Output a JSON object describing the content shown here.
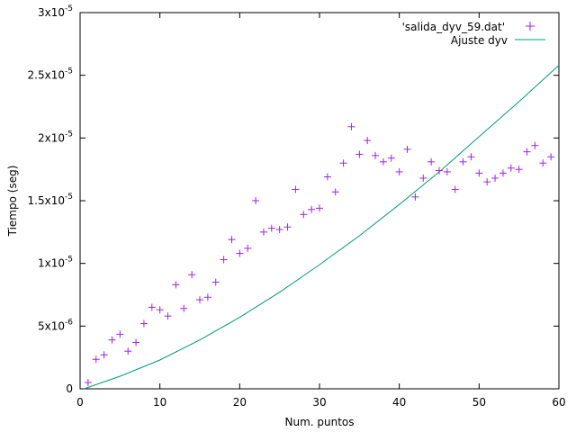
{
  "chart_data": {
    "type": "scatter",
    "xlabel": "Num. puntos",
    "ylabel": "Tiempo (seg)",
    "xlim": [
      0,
      60
    ],
    "ylim": [
      0,
      3e-05
    ],
    "grid": false,
    "legend_position": "top-right",
    "x_ticks": [
      {
        "value": 0,
        "label": "0"
      },
      {
        "value": 10,
        "label": "10"
      },
      {
        "value": 20,
        "label": "20"
      },
      {
        "value": 30,
        "label": "30"
      },
      {
        "value": 40,
        "label": "40"
      },
      {
        "value": 50,
        "label": "50"
      },
      {
        "value": 60,
        "label": "60"
      }
    ],
    "y_ticks": [
      {
        "value": 0,
        "mantissa": "0",
        "exponent": ""
      },
      {
        "value": 5e-06,
        "mantissa": "5x10",
        "exponent": "-6"
      },
      {
        "value": 1e-05,
        "mantissa": "1x10",
        "exponent": "-5"
      },
      {
        "value": 1.5e-05,
        "mantissa": "1.5x10",
        "exponent": "-5"
      },
      {
        "value": 2e-05,
        "mantissa": "2x10",
        "exponent": "-5"
      },
      {
        "value": 2.5e-05,
        "mantissa": "2.5x10",
        "exponent": "-5"
      },
      {
        "value": 3e-05,
        "mantissa": "3x10",
        "exponent": "-5"
      }
    ],
    "series": [
      {
        "name": "'salida_dyv_59.dat'",
        "style": "points",
        "color": "#a020f0",
        "x": [
          1,
          2,
          3,
          4,
          5,
          6,
          7,
          8,
          9,
          10,
          11,
          12,
          13,
          14,
          15,
          16,
          17,
          18,
          19,
          20,
          21,
          22,
          23,
          24,
          25,
          26,
          27,
          28,
          29,
          30,
          31,
          32,
          33,
          34,
          35,
          36,
          37,
          38,
          39,
          40,
          41,
          42,
          43,
          44,
          45,
          46,
          47,
          48,
          49,
          50,
          51,
          52,
          53,
          54,
          55,
          56,
          57,
          58,
          59
        ],
        "y": [
          5e-07,
          2.35e-06,
          2.7e-06,
          3.9e-06,
          4.35e-06,
          3e-06,
          3.7e-06,
          5.2e-06,
          6.5e-06,
          6.3e-06,
          5.8e-06,
          8.3e-06,
          6.4e-06,
          9.1e-06,
          7.1e-06,
          7.3e-06,
          8.5e-06,
          1.03e-05,
          1.19e-05,
          1.08e-05,
          1.12e-05,
          1.5e-05,
          1.25e-05,
          1.28e-05,
          1.27e-05,
          1.29e-05,
          1.59e-05,
          1.39e-05,
          1.43e-05,
          1.44e-05,
          1.69e-05,
          1.57e-05,
          1.8e-05,
          2.09e-05,
          1.87e-05,
          1.98e-05,
          1.86e-05,
          1.81e-05,
          1.84e-05,
          1.73e-05,
          1.91e-05,
          1.53e-05,
          1.68e-05,
          1.81e-05,
          1.74e-05,
          1.73e-05,
          1.59e-05,
          1.81e-05,
          1.85e-05,
          1.72e-05,
          1.65e-05,
          1.68e-05,
          1.72e-05,
          1.76e-05,
          1.75e-05,
          1.89e-05,
          1.94e-05,
          1.8e-05,
          1.85e-05
        ]
      },
      {
        "name": "Ajuste dyv",
        "style": "line",
        "color": "#009e73",
        "x": [
          0.5,
          5,
          10,
          15,
          20,
          25,
          30,
          35,
          40,
          45,
          50,
          55,
          60
        ],
        "y": [
          0,
          1e-06,
          2.3e-06,
          3.9e-06,
          5.7e-06,
          7.7e-06,
          9.9e-06,
          1.22e-05,
          1.47e-05,
          1.73e-05,
          2.01e-05,
          2.29e-05,
          2.58e-05
        ]
      }
    ]
  }
}
